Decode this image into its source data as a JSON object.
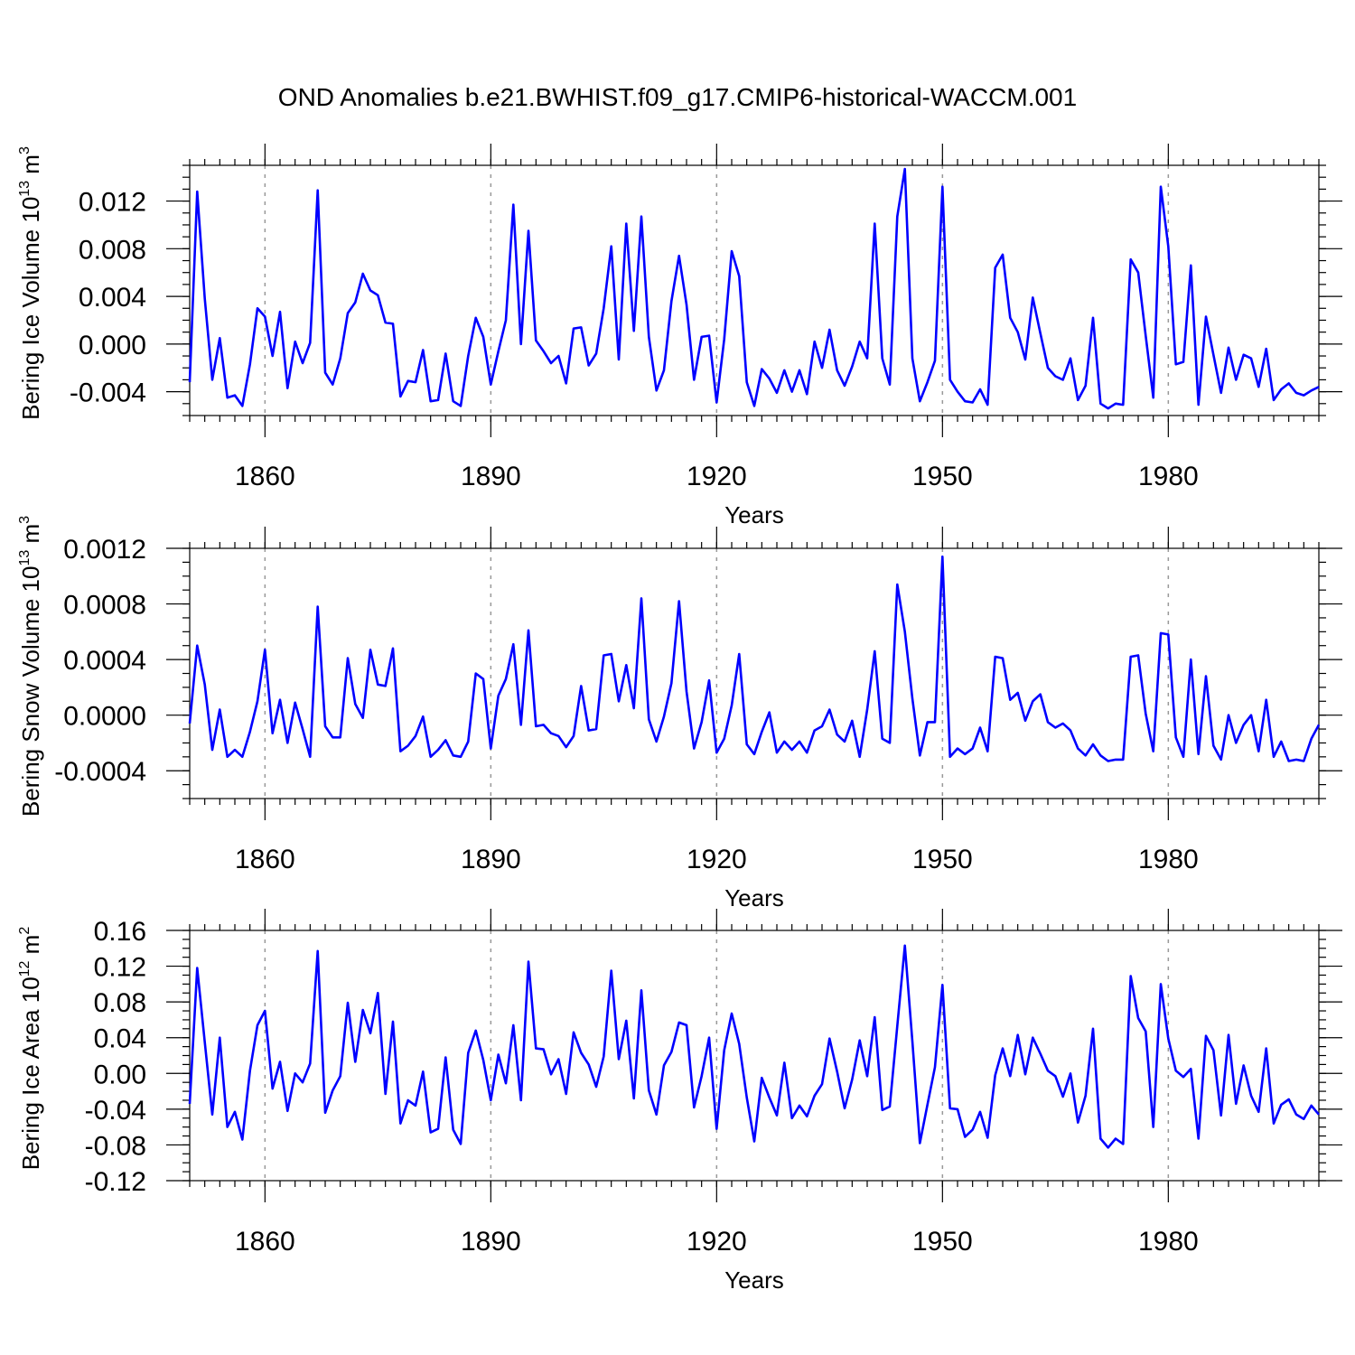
{
  "title": "OND Anomalies b.e21.BWHIST.f09_g17.CMIP6-historical-WACCM.001",
  "colors": {
    "series": "#0000ff",
    "grid": "#999999",
    "axis": "#000000"
  },
  "chart_data": [
    {
      "type": "line",
      "name": "ice-volume",
      "ylabel": "Bering Ice Volume 10",
      "ylabel_exp": "13",
      "ylabel_unit": " m",
      "ylabel_unit_exp": "3",
      "xlabel": "Years",
      "xlim": [
        1850,
        2000
      ],
      "ylim": [
        -0.006,
        0.015
      ],
      "xticks": [
        1860,
        1890,
        1920,
        1950,
        1980
      ],
      "xtick_labels": [
        "1860",
        "1890",
        "1920",
        "1950",
        "1980"
      ],
      "yticks": [
        -0.004,
        0.0,
        0.004,
        0.008,
        0.012
      ],
      "ytick_labels": [
        "-0.004",
        "0.000",
        "0.004",
        "0.008",
        "0.012"
      ],
      "grid": "vertical dashed at major x ticks",
      "series": [
        {
          "name": "Bering Ice Volume",
          "x_start": 1850,
          "values": [
            -0.0032,
            0.0128,
            0.0038,
            -0.003,
            0.0005,
            -0.0045,
            -0.0043,
            -0.0052,
            -0.0017,
            0.003,
            0.0023,
            -0.001,
            0.0027,
            -0.0037,
            0.0002,
            -0.0016,
            0.0001,
            0.0129,
            -0.0024,
            -0.0034,
            -0.0012,
            0.0026,
            0.0035,
            0.0059,
            0.0045,
            0.0041,
            0.0018,
            0.0017,
            -0.0044,
            -0.0031,
            -0.0032,
            -0.0005,
            -0.0048,
            -0.0047,
            -0.0008,
            -0.0048,
            -0.0052,
            -0.001,
            0.0022,
            0.0006,
            -0.0034,
            -0.0006,
            0.002,
            0.0117,
            0.0,
            0.0095,
            0.0003,
            -0.0006,
            -0.0016,
            -0.001,
            -0.0033,
            0.0013,
            0.0014,
            -0.0018,
            -0.0008,
            0.003,
            0.0082,
            -0.0013,
            0.0101,
            0.0011,
            0.0107,
            0.0006,
            -0.0039,
            -0.0022,
            0.0036,
            0.0074,
            0.0033,
            -0.003,
            0.0006,
            0.0007,
            -0.0049,
            0.0004,
            0.0078,
            0.0057,
            -0.0032,
            -0.0052,
            -0.0021,
            -0.0029,
            -0.0041,
            -0.0022,
            -0.004,
            -0.0022,
            -0.0042,
            0.0002,
            -0.002,
            0.0012,
            -0.0022,
            -0.0035,
            -0.0019,
            0.0002,
            -0.0012,
            0.0101,
            -0.0012,
            -0.0034,
            0.0107,
            0.0147,
            -0.0012,
            -0.0048,
            -0.0032,
            -0.0014,
            0.0132,
            -0.003,
            -0.004,
            -0.0048,
            -0.0049,
            -0.0038,
            -0.0051,
            0.0064,
            0.0075,
            0.0022,
            0.001,
            -0.0013,
            0.0039,
            0.0009,
            -0.002,
            -0.0027,
            -0.003,
            -0.0012,
            -0.0047,
            -0.0035,
            0.0022,
            -0.005,
            -0.0054,
            -0.005,
            -0.0051,
            0.0071,
            0.006,
            0.0007,
            -0.0045,
            0.0132,
            0.0082,
            -0.0017,
            -0.0015,
            0.0066,
            -0.0051,
            0.0023,
            -0.0009,
            -0.0041,
            -0.0003,
            -0.003,
            -0.0009,
            -0.0012,
            -0.0036,
            -0.0004,
            -0.0047,
            -0.0038,
            -0.0033,
            -0.0041,
            -0.0043,
            -0.0039,
            -0.0036
          ]
        }
      ]
    },
    {
      "type": "line",
      "name": "snow-volume",
      "ylabel": "Bering Snow Volume 10",
      "ylabel_exp": "13",
      "ylabel_unit": " m",
      "ylabel_unit_exp": "3",
      "xlabel": "Years",
      "xlim": [
        1850,
        2000
      ],
      "ylim": [
        -0.0006,
        0.0012
      ],
      "xticks": [
        1860,
        1890,
        1920,
        1950,
        1980
      ],
      "xtick_labels": [
        "1860",
        "1890",
        "1920",
        "1950",
        "1980"
      ],
      "yticks": [
        -0.0004,
        0.0,
        0.0004,
        0.0008,
        0.0012
      ],
      "ytick_labels": [
        "-0.0004",
        "0.0000",
        "0.0004",
        "0.0008",
        "0.0012"
      ],
      "grid": "vertical dashed at major x ticks",
      "series": [
        {
          "name": "Bering Snow Volume",
          "x_start": 1850,
          "values": [
            -6e-05,
            0.0005,
            0.00022,
            -0.00025,
            4e-05,
            -0.0003,
            -0.00025,
            -0.0003,
            -0.00012,
            0.0001,
            0.00047,
            -0.00013,
            0.00011,
            -0.0002,
            9e-05,
            -0.0001,
            -0.0003,
            0.00078,
            -8e-05,
            -0.00016,
            -0.00016,
            0.00041,
            8e-05,
            -2e-05,
            0.00047,
            0.00022,
            0.00021,
            0.00048,
            -0.00026,
            -0.00022,
            -0.00015,
            -1e-05,
            -0.0003,
            -0.00025,
            -0.00018,
            -0.00029,
            -0.0003,
            -0.00019,
            0.0003,
            0.00026,
            -0.00024,
            0.00014,
            0.00026,
            0.00051,
            -7e-05,
            0.00061,
            -8e-05,
            -7e-05,
            -0.00013,
            -0.00015,
            -0.00023,
            -0.00015,
            0.00021,
            -0.00011,
            -0.0001,
            0.00043,
            0.00044,
            0.0001,
            0.00036,
            5e-05,
            0.00084,
            -3e-05,
            -0.00019,
            -1e-05,
            0.00023,
            0.00082,
            0.00017,
            -0.00024,
            -5e-05,
            0.00025,
            -0.00027,
            -0.00017,
            7e-05,
            0.00044,
            -0.00021,
            -0.00028,
            -0.00012,
            2e-05,
            -0.00027,
            -0.00019,
            -0.00025,
            -0.00019,
            -0.00027,
            -0.00011,
            -8e-05,
            4e-05,
            -0.00014,
            -0.00019,
            -4e-05,
            -0.0003,
            4e-05,
            0.00046,
            -0.00017,
            -0.0002,
            0.00094,
            0.0006,
            0.00012,
            -0.00029,
            -5e-05,
            -5e-05,
            0.00114,
            -0.0003,
            -0.00024,
            -0.00028,
            -0.00024,
            -9e-05,
            -0.00026,
            0.00042,
            0.00041,
            0.00011,
            0.00016,
            -4e-05,
            0.0001,
            0.00015,
            -5e-05,
            -9e-05,
            -6e-05,
            -0.00011,
            -0.00024,
            -0.00029,
            -0.00021,
            -0.00029,
            -0.00033,
            -0.00032,
            -0.00032,
            0.00042,
            0.00043,
            1e-05,
            -0.00026,
            0.00059,
            0.00058,
            -0.00016,
            -0.0003,
            0.0004,
            -0.00028,
            0.00028,
            -0.00022,
            -0.00032,
            0.0,
            -0.0002,
            -7e-05,
            0.0,
            -0.00026,
            0.00011,
            -0.0003,
            -0.00019,
            -0.00033,
            -0.00032,
            -0.00033,
            -0.00017,
            -7e-05
          ]
        }
      ]
    },
    {
      "type": "line",
      "name": "ice-area",
      "ylabel": "Bering Ice Area 10",
      "ylabel_exp": "12",
      "ylabel_unit": " m",
      "ylabel_unit_exp": "2",
      "xlabel": "Years",
      "xlim": [
        1850,
        2000
      ],
      "ylim": [
        -0.12,
        0.16
      ],
      "xticks": [
        1860,
        1890,
        1920,
        1950,
        1980
      ],
      "xtick_labels": [
        "1860",
        "1890",
        "1920",
        "1950",
        "1980"
      ],
      "yticks": [
        -0.12,
        -0.08,
        -0.04,
        0.0,
        0.04,
        0.08,
        0.12,
        0.16
      ],
      "ytick_labels": [
        "-0.12",
        "-0.08",
        "-0.04",
        "0.00",
        "0.04",
        "0.08",
        "0.12",
        "0.16"
      ],
      "grid": "vertical dashed at major x ticks",
      "series": [
        {
          "name": "Bering Ice Area",
          "x_start": 1850,
          "values": [
            -0.034,
            0.118,
            0.035,
            -0.046,
            0.04,
            -0.06,
            -0.043,
            -0.074,
            0.003,
            0.054,
            0.07,
            -0.017,
            0.013,
            -0.042,
            0.0,
            -0.01,
            0.011,
            0.137,
            -0.044,
            -0.019,
            -0.003,
            0.079,
            0.013,
            0.071,
            0.045,
            0.09,
            -0.023,
            0.058,
            -0.056,
            -0.03,
            -0.036,
            0.002,
            -0.066,
            -0.062,
            0.018,
            -0.063,
            -0.079,
            0.023,
            0.048,
            0.015,
            -0.03,
            0.021,
            -0.011,
            0.054,
            -0.03,
            0.125,
            0.028,
            0.027,
            -0.001,
            0.016,
            -0.023,
            0.046,
            0.023,
            0.01,
            -0.015,
            0.019,
            0.115,
            0.016,
            0.059,
            -0.028,
            0.093,
            -0.019,
            -0.046,
            0.009,
            0.024,
            0.057,
            0.054,
            -0.038,
            -0.003,
            0.04,
            -0.062,
            0.026,
            0.067,
            0.033,
            -0.027,
            -0.076,
            -0.005,
            -0.027,
            -0.047,
            0.012,
            -0.05,
            -0.036,
            -0.048,
            -0.025,
            -0.012,
            0.039,
            0.002,
            -0.039,
            -0.007,
            0.037,
            -0.003,
            0.063,
            -0.041,
            -0.037,
            0.053,
            0.143,
            0.036,
            -0.078,
            -0.035,
            0.007,
            0.099,
            -0.039,
            -0.04,
            -0.071,
            -0.063,
            -0.043,
            -0.072,
            -0.002,
            0.028,
            -0.003,
            0.043,
            -0.001,
            0.04,
            0.022,
            0.003,
            -0.003,
            -0.026,
            0.0,
            -0.055,
            -0.025,
            0.05,
            -0.073,
            -0.083,
            -0.073,
            -0.079,
            0.109,
            0.062,
            0.047,
            -0.06,
            0.1,
            0.039,
            0.003,
            -0.004,
            0.005,
            -0.073,
            0.042,
            0.026,
            -0.047,
            0.043,
            -0.034,
            0.009,
            -0.025,
            -0.043,
            0.028,
            -0.056,
            -0.035,
            -0.029,
            -0.046,
            -0.051,
            -0.036,
            -0.046
          ]
        }
      ]
    }
  ]
}
